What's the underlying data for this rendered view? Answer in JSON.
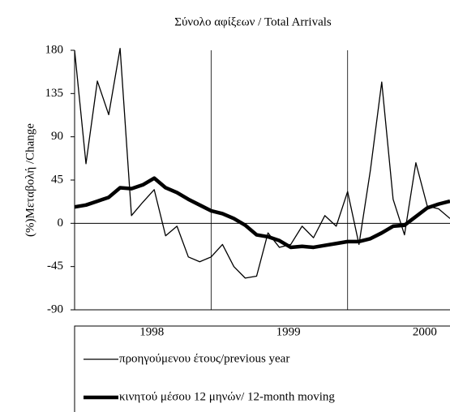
{
  "chart_data": {
    "type": "line",
    "title": "Σύνολο αφίξεων / Total Arrivals",
    "y_label": "(%)Μεταβολή /Change",
    "categories": [
      null,
      null,
      null,
      null,
      null,
      null,
      null,
      "1998",
      null,
      null,
      null,
      null,
      null,
      null,
      null,
      null,
      null,
      null,
      null,
      "1999",
      null,
      null,
      null,
      null,
      null,
      null,
      null,
      null,
      null,
      null,
      null,
      "2000",
      null,
      null
    ],
    "series": [
      {
        "name": "προηγούμενου έτους/previous year",
        "color": "#000000",
        "width": 1.3,
        "values": [
          180,
          62,
          148,
          113,
          182,
          8,
          22,
          35,
          -13,
          -3,
          -35,
          -40,
          -35,
          -22,
          -45,
          -57,
          -55,
          -10,
          -25,
          -22,
          -3,
          -15,
          8,
          -3,
          33,
          -22,
          55,
          147,
          25,
          -12,
          63,
          18,
          15,
          5
        ]
      },
      {
        "name": "κινητού μέσου 12 μηνών/ 12-month moving",
        "color": "#000000",
        "width": 4.5,
        "values": [
          17,
          19,
          23,
          27,
          37,
          36,
          40,
          47,
          37,
          32,
          25,
          19,
          13,
          10,
          5,
          -2,
          -12,
          -14,
          -18,
          -25,
          -24,
          -25,
          -23,
          -21,
          -19,
          -19,
          -16,
          -10,
          -3,
          -2,
          7,
          16,
          20,
          23
        ]
      }
    ],
    "ylim": [
      -90,
      180
    ],
    "yticks": [
      -90,
      -45,
      0,
      45,
      90,
      135,
      180
    ]
  }
}
